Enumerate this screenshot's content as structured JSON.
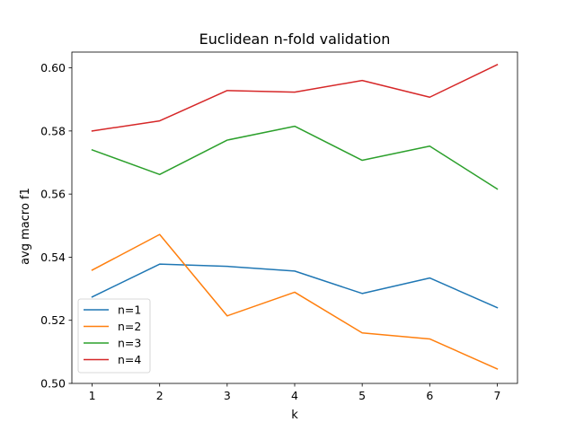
{
  "chart_data": {
    "type": "line",
    "title": "Euclidean n-fold validation",
    "xlabel": "k",
    "ylabel": "avg macro f1",
    "x": [
      1,
      2,
      3,
      4,
      5,
      6,
      7
    ],
    "xlim": [
      0.7,
      7.3
    ],
    "ylim": [
      0.5,
      0.605
    ],
    "xticks": [
      "1",
      "2",
      "3",
      "4",
      "5",
      "6",
      "7"
    ],
    "yticks": [
      "0.50",
      "0.52",
      "0.54",
      "0.56",
      "0.58",
      "0.60"
    ],
    "grid": false,
    "legend_position": "lower-left",
    "series": [
      {
        "name": "n=1",
        "color": "#1f77b4",
        "values": [
          0.5274,
          0.5378,
          0.5371,
          0.5356,
          0.5285,
          0.5334,
          0.524
        ]
      },
      {
        "name": "n=2",
        "color": "#ff7f0e",
        "values": [
          0.5359,
          0.5472,
          0.5214,
          0.5289,
          0.516,
          0.5141,
          0.5046
        ]
      },
      {
        "name": "n=3",
        "color": "#2ca02c",
        "values": [
          0.574,
          0.5662,
          0.5771,
          0.5815,
          0.5707,
          0.5752,
          0.5616
        ]
      },
      {
        "name": "n=4",
        "color": "#d62728",
        "values": [
          0.58,
          0.5832,
          0.5928,
          0.5923,
          0.596,
          0.5907,
          0.601
        ]
      }
    ]
  }
}
